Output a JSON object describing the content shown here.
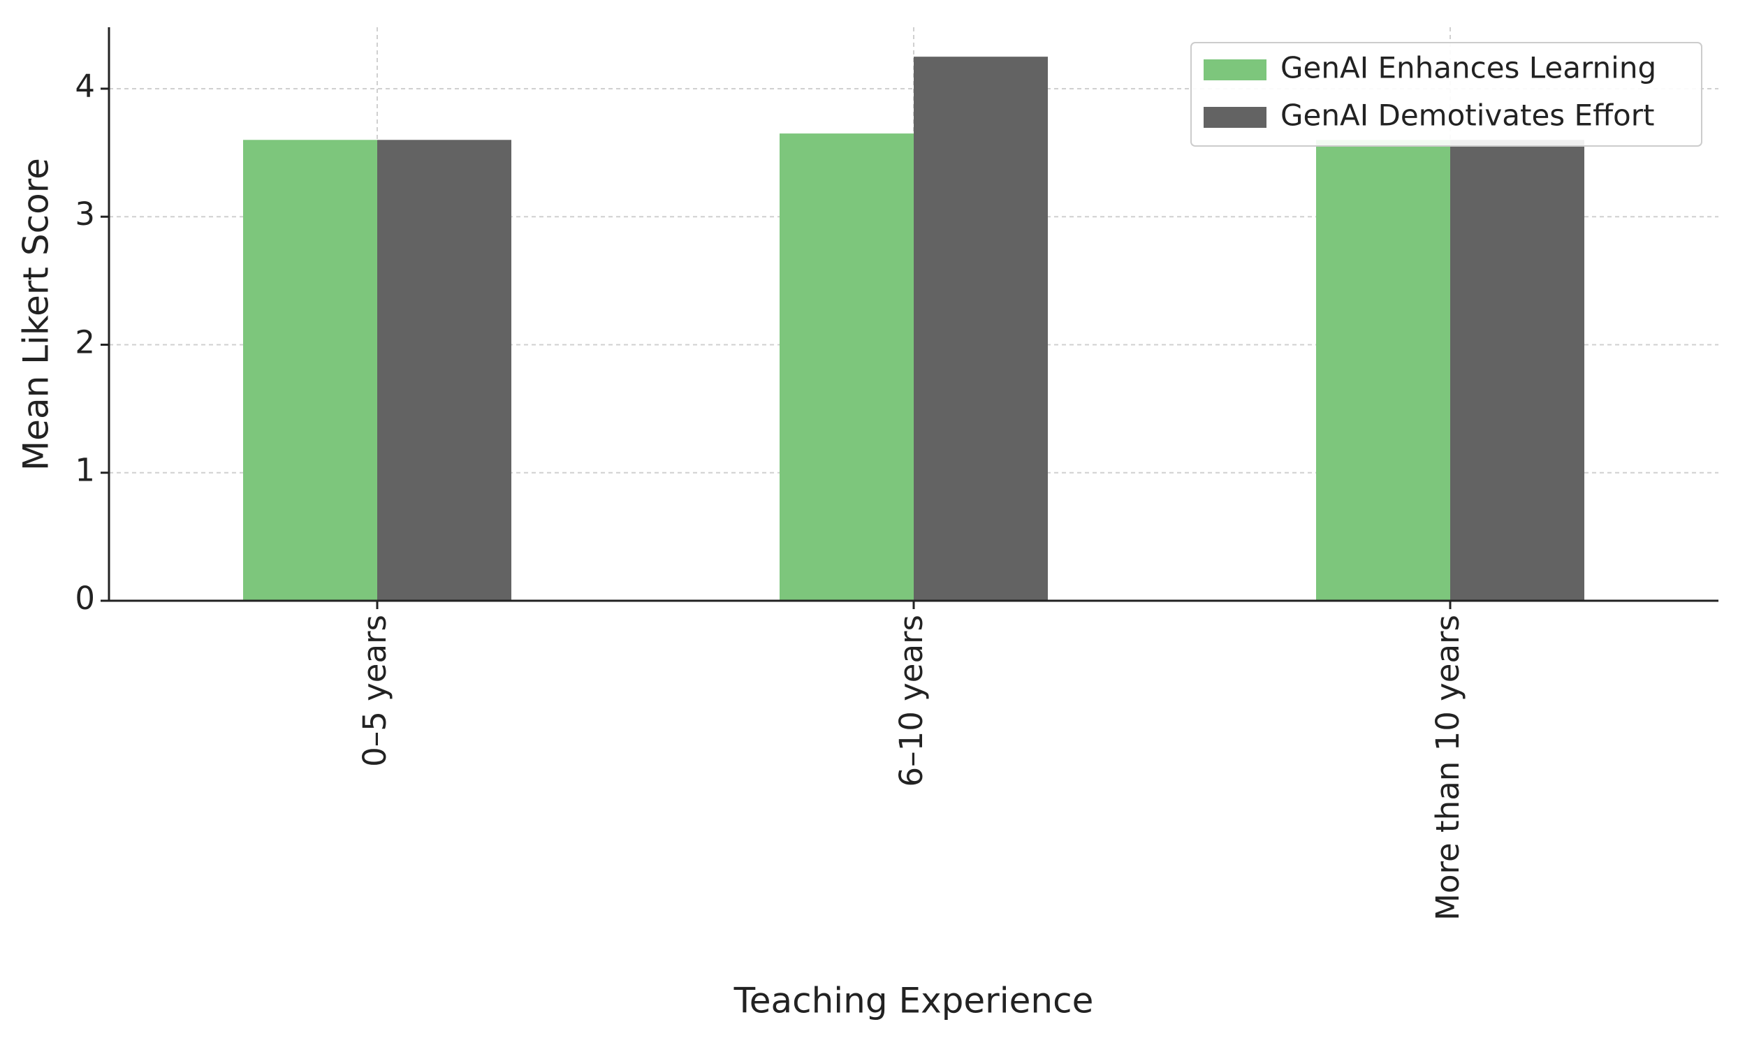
{
  "chart_data": {
    "type": "bar",
    "x_label": "Teaching Experience",
    "y_label": "Mean Likert Score",
    "categories": [
      "0–5 years",
      "6–10 years",
      "More than 10 years"
    ],
    "series": [
      {
        "name": "GenAI Enhances Learning",
        "color": "#7dc67c",
        "values": [
          3.6,
          3.65,
          3.6
        ]
      },
      {
        "name": "GenAI Demotivates Effort",
        "color": "#636363",
        "values": [
          3.6,
          4.25,
          3.6
        ]
      }
    ],
    "ylim": [
      0,
      4.48
    ],
    "yticks": [
      0,
      1,
      2,
      3,
      4
    ],
    "grid": true,
    "legend": "upper right"
  }
}
